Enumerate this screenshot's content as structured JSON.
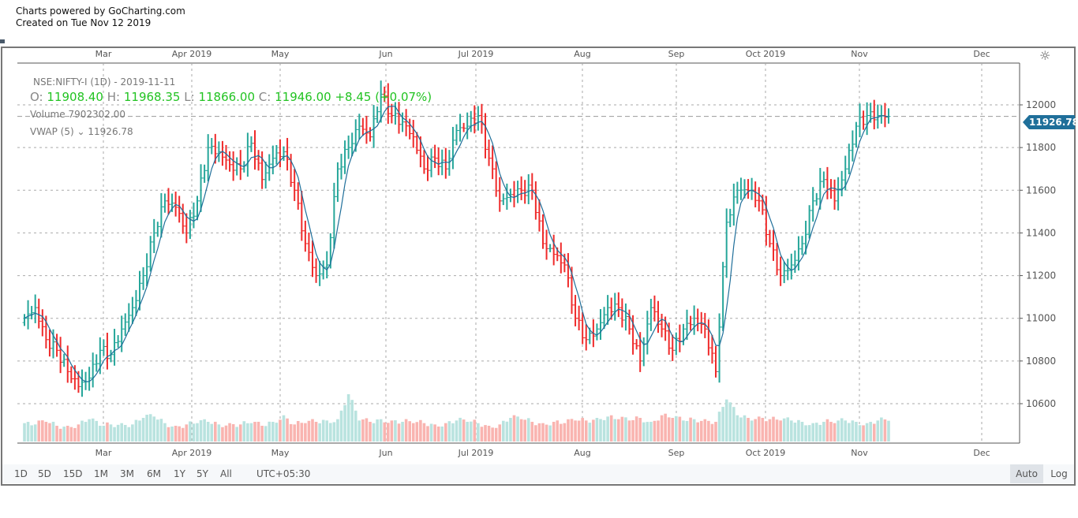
{
  "header": {
    "line1": "Charts powered by GoCharting.com",
    "line2": "Created on Tue Nov 12 2019"
  },
  "legend": {
    "symbol": "NSE:NIFTY-I (1D) - 2019-11-11",
    "o_label": "O:",
    "o": "11908.40",
    "h_label": "H:",
    "h": "11968.35",
    "l_label": "L:",
    "l": "11866.00",
    "c_label": "C:",
    "c": "11946.00",
    "change": "+8.45",
    "change_pct": "(+0.07%)",
    "volume": "Volume 7902302.00",
    "vwap_label": "VWAP (5)",
    "vwap_value": "11926.78"
  },
  "price_tag": "11926.78",
  "toolbar": {
    "ranges": [
      "1D",
      "5D",
      "15D",
      "1M",
      "3M",
      "6M",
      "1Y",
      "5Y",
      "All"
    ],
    "timezone": "UTC+05:30",
    "auto": "Auto",
    "log": "Log"
  },
  "colors": {
    "up": "#26a69a",
    "down": "#ef2b2b",
    "vwap": "#1f6f9a",
    "up_volume": "#b9e3df",
    "down_volume": "#f9b4b0"
  },
  "icons": {
    "settings": "sun-gear-icon"
  },
  "chart_data": {
    "type": "ohlc",
    "symbol": "NSE:NIFTY-I",
    "interval": "1D",
    "x_ticks": [
      "Mar",
      "Apr 2019",
      "May",
      "Jun",
      "Jul 2019",
      "Aug",
      "Sep",
      "Oct 2019",
      "Nov",
      "Dec"
    ],
    "y_ticks": [
      10600,
      10800,
      11000,
      11200,
      11400,
      11600,
      11800,
      12000
    ],
    "ylim": [
      10450,
      12150
    ],
    "grid": true,
    "close_approx": [
      11000,
      11050,
      10900,
      10850,
      10750,
      10680,
      10720,
      10850,
      10830,
      10950,
      11050,
      11200,
      11400,
      11550,
      11520,
      11400,
      11550,
      11800,
      11780,
      11720,
      11700,
      11820,
      11650,
      11750,
      11780,
      11600,
      11350,
      11200,
      11250,
      11700,
      11800,
      11900,
      11850,
      12050,
      11950,
      11920,
      11850,
      11700,
      11750,
      11700,
      11880,
      11900,
      11950,
      11750,
      11550,
      11580,
      11600,
      11600,
      11350,
      11300,
      11250,
      11000,
      10900,
      10950,
      11050,
      11050,
      10950,
      10800,
      11050,
      10950,
      10850,
      10950,
      11000,
      10950,
      10750,
      11450,
      11600,
      11600,
      11550,
      11350,
      11200,
      11250,
      11350,
      11550,
      11650,
      11550,
      11700,
      11900,
      11950,
      11950,
      11946
    ],
    "volume_approx": [
      7,
      6.5,
      7.5,
      6,
      6,
      6.5,
      8.5,
      6,
      6.5,
      7,
      6.5,
      9,
      9.5,
      7,
      6,
      6.5,
      7,
      7.5,
      6.5,
      7,
      6.5,
      7,
      6,
      7.5,
      10,
      6.5,
      7,
      7.5,
      8,
      8.5,
      18,
      8,
      7.5,
      8.5,
      8,
      7.5,
      7,
      7,
      6.5,
      7,
      8,
      7.5,
      7,
      6,
      6.5,
      9,
      8.5,
      7.5,
      7,
      7.5,
      7,
      8,
      8,
      9,
      9.5,
      8.5,
      8,
      9,
      7.5,
      10,
      9,
      8,
      8.5,
      8.5,
      7.5,
      16,
      10,
      9,
      9.5,
      8.5,
      8,
      8,
      7.5,
      7,
      7.5,
      7,
      8,
      7.5,
      7,
      8,
      7.9
    ],
    "current_price": 11926.78
  }
}
